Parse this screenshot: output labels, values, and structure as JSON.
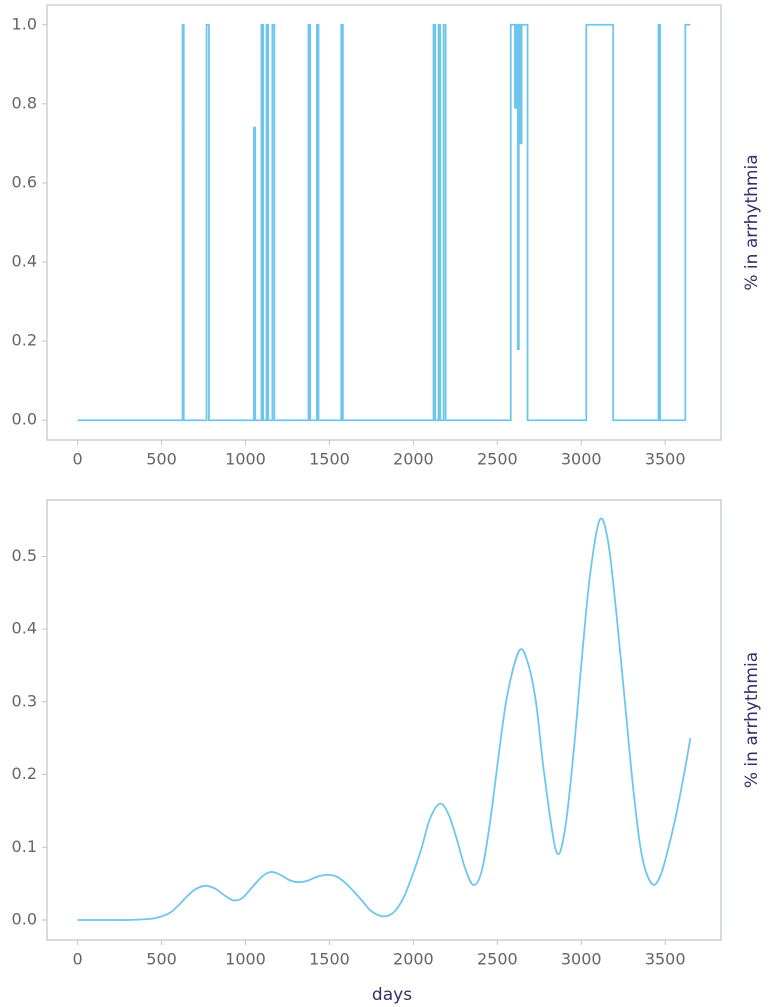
{
  "chart_data": [
    {
      "type": "line",
      "ylabel": "% in arrhythmia",
      "x": [
        0,
        625,
        625,
        632,
        632,
        768,
        768,
        782,
        782,
        1050,
        1050,
        1058,
        1058,
        1095,
        1095,
        1105,
        1105,
        1125,
        1125,
        1135,
        1135,
        1160,
        1160,
        1172,
        1172,
        1375,
        1375,
        1385,
        1385,
        1425,
        1425,
        1435,
        1435,
        1570,
        1570,
        1580,
        1580,
        2120,
        2120,
        2130,
        2130,
        2150,
        2150,
        2160,
        2160,
        2180,
        2180,
        2192,
        2192,
        2580,
        2580,
        2605,
        2605,
        2612,
        2612,
        2622,
        2622,
        2628,
        2628,
        2638,
        2638,
        2645,
        2645,
        2680,
        2680,
        3030,
        3030,
        3190,
        3190,
        3460,
        3460,
        3470,
        3470,
        3620,
        3620,
        3650
      ],
      "values": [
        0,
        0,
        1,
        1,
        0,
        0,
        1,
        1,
        0,
        0,
        0.74,
        0.74,
        0,
        0,
        1,
        1,
        0,
        0,
        1,
        1,
        0,
        0,
        1,
        1,
        0,
        0,
        1,
        1,
        0,
        0,
        1,
        1,
        0,
        0,
        1,
        1,
        0,
        0,
        1,
        1,
        0,
        0,
        1,
        1,
        0,
        0,
        1,
        1,
        0,
        0,
        1,
        1,
        0.79,
        0.79,
        1,
        1,
        0.18,
        0.18,
        1,
        1,
        0.7,
        0.7,
        1,
        1,
        0,
        0,
        1,
        1,
        0,
        0,
        1,
        1,
        0,
        0,
        1,
        1
      ],
      "color": "#6ec6ee",
      "xlim": [
        -182.5,
        3832.5
      ],
      "xticks": [
        0,
        500,
        1000,
        1500,
        2000,
        2500,
        3000,
        3500
      ],
      "ylim": [
        -0.05,
        1.05
      ],
      "yticks": [
        {
          "value": 0,
          "label": "0.0"
        },
        0.2,
        0.4,
        0.6,
        0.8,
        {
          "value": 1,
          "label": "1.0"
        }
      ]
    },
    {
      "type": "smooth-line",
      "ylabel": "% in arrhythmia",
      "xlabel": "days",
      "x": [
        0,
        100,
        200,
        300,
        400,
        450,
        500,
        550,
        600,
        650,
        700,
        760,
        820,
        880,
        930,
        980,
        1040,
        1100,
        1150,
        1200,
        1260,
        1310,
        1370,
        1420,
        1480,
        1540,
        1600,
        1650,
        1700,
        1750,
        1820,
        1880,
        1940,
        2000,
        2050,
        2100,
        2160,
        2210,
        2260,
        2310,
        2360,
        2410,
        2460,
        2510,
        2560,
        2630,
        2680,
        2730,
        2780,
        2850,
        2900,
        2950,
        3000,
        3050,
        3110,
        3160,
        3210,
        3260,
        3310,
        3360,
        3420,
        3470,
        3520,
        3570,
        3620,
        3650
      ],
      "values": [
        0,
        0,
        0,
        0,
        0.001,
        0.002,
        0.005,
        0.01,
        0.02,
        0.032,
        0.042,
        0.047,
        0.043,
        0.033,
        0.027,
        0.03,
        0.045,
        0.06,
        0.066,
        0.063,
        0.055,
        0.052,
        0.054,
        0.059,
        0.062,
        0.06,
        0.05,
        0.038,
        0.025,
        0.012,
        0.005,
        0.01,
        0.03,
        0.065,
        0.1,
        0.14,
        0.16,
        0.145,
        0.11,
        0.07,
        0.048,
        0.07,
        0.14,
        0.23,
        0.31,
        0.37,
        0.355,
        0.3,
        0.2,
        0.095,
        0.12,
        0.22,
        0.35,
        0.47,
        0.55,
        0.52,
        0.42,
        0.3,
        0.18,
        0.09,
        0.05,
        0.06,
        0.1,
        0.15,
        0.21,
        0.25
      ],
      "color": "#6ec6ee",
      "xlim": [
        -182.5,
        3832.5
      ],
      "xticks": [
        0,
        500,
        1000,
        1500,
        2000,
        2500,
        3000,
        3500
      ],
      "ylim": [
        -0.0275,
        0.5775
      ],
      "yticks": [
        {
          "value": 0,
          "label": "0.0"
        },
        0.1,
        0.2,
        0.3,
        0.4,
        0.5
      ]
    }
  ]
}
